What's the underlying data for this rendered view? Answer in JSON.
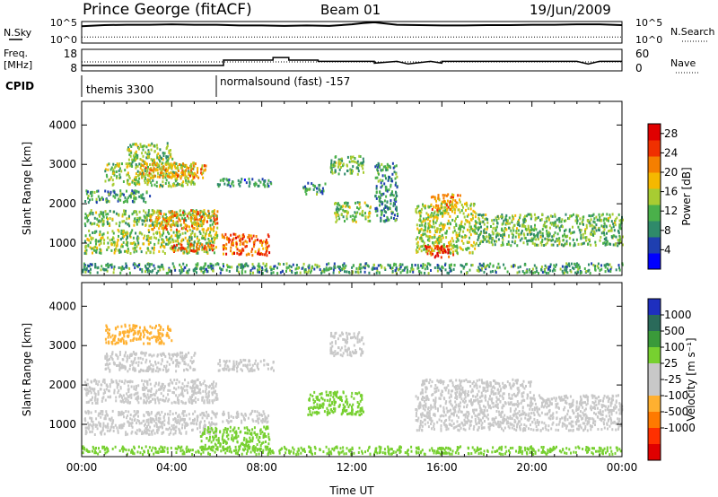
{
  "header": {
    "station": "Prince George (fitACF)",
    "beam": "Beam 01",
    "date": "19/Jun/2009"
  },
  "colors": {
    "power_scale": [
      "#0000ff",
      "#1f3fb0",
      "#2f8a6a",
      "#4ab04a",
      "#a8cc32",
      "#f5b800",
      "#f57f00",
      "#f03000",
      "#e00000"
    ],
    "velocity_scale": [
      "#1e2fbf",
      "#2a6a5a",
      "#3a9a3a",
      "#77d030",
      "#c8c8c8",
      "#c8c8c8",
      "#ffb030",
      "#ff7a00",
      "#ff3000",
      "#e00000"
    ]
  },
  "chart_data": [
    {
      "type": "line",
      "panel": "noise",
      "left_label_top": "N.Sky",
      "right_label": "N.Search",
      "left_ticks": [
        "10^5",
        "10^0"
      ],
      "right_ticks": [
        "10^5",
        "10^0"
      ],
      "series": [
        {
          "name": "N.Sky",
          "x": [
            0,
            1,
            2,
            3,
            4,
            5,
            6,
            7,
            8,
            9,
            10,
            11,
            12,
            12.5,
            13,
            14,
            15,
            16,
            17,
            18,
            19,
            20,
            21,
            22,
            23,
            24
          ],
          "y": [
            4.2,
            4.5,
            4.6,
            4.6,
            4.7,
            4.6,
            4.6,
            4.4,
            4.4,
            4.3,
            4.4,
            4.3,
            4.7,
            5.0,
            5.2,
            4.6,
            4.5,
            4.4,
            4.4,
            4.5,
            4.5,
            4.6,
            4.6,
            4.7,
            4.7,
            4.5
          ]
        },
        {
          "name": "N.Search",
          "x": [
            0,
            4,
            8,
            12,
            16,
            20,
            24
          ],
          "y": [
            1.5,
            1.5,
            1.5,
            1.5,
            1.5,
            1.5,
            1.5
          ]
        }
      ]
    },
    {
      "type": "line",
      "panel": "frequency",
      "left_label_top": "Freq.",
      "left_label_bottom": "[MHz]",
      "right_label": "Nave",
      "left_ticks": [
        "18",
        "8"
      ],
      "right_ticks": [
        "60",
        "0"
      ],
      "series": [
        {
          "name": "Freq.",
          "x": [
            0,
            6.3,
            6.3,
            8.5,
            8.5,
            9.2,
            9.2,
            10.5,
            10.5,
            13,
            13,
            14,
            14.5,
            15.5,
            16,
            16,
            17,
            20,
            22,
            22.5,
            23,
            24
          ],
          "y": [
            10.5,
            10.5,
            13,
            13,
            14.2,
            14.2,
            13,
            13,
            12.4,
            12.4,
            11.6,
            12.4,
            11.2,
            12.4,
            11.6,
            12.4,
            12.4,
            12.4,
            12.4,
            11.2,
            12.4,
            12.4
          ]
        },
        {
          "name": "Nave",
          "x": [
            0,
            24
          ],
          "y": [
            25,
            25
          ]
        }
      ]
    },
    {
      "type": "table",
      "panel": "cpid",
      "label": "CPID",
      "segments": [
        {
          "name": "themis 3300",
          "start": 0,
          "end": 6
        },
        {
          "name": "normalsound (fast) -157",
          "start": 6,
          "end": 24
        }
      ]
    },
    {
      "type": "heatmap",
      "panel": "power",
      "ylabel": "Slant Range [km]",
      "xlim": [
        0,
        24
      ],
      "ylim": [
        180,
        4600
      ],
      "yticks": [
        1000,
        2000,
        3000,
        4000
      ],
      "colorbar": {
        "label": "Power [dB]",
        "ticks": [
          4,
          8,
          12,
          16,
          20,
          24,
          28
        ],
        "range": [
          0,
          30
        ]
      },
      "regions": [
        {
          "t0": 0.1,
          "t1": 6,
          "r0": 700,
          "r1": 1300,
          "v": 14
        },
        {
          "t0": 0.1,
          "t1": 6,
          "r0": 1400,
          "r1": 1800,
          "v": 13
        },
        {
          "t0": 0.1,
          "t1": 3,
          "r0": 2000,
          "r1": 2300,
          "v": 10
        },
        {
          "t0": 1,
          "t1": 5,
          "r0": 2400,
          "r1": 3000,
          "v": 14
        },
        {
          "t0": 2,
          "t1": 4,
          "r0": 3000,
          "r1": 3500,
          "v": 13
        },
        {
          "t0": 2.5,
          "t1": 5.5,
          "r0": 2600,
          "r1": 3000,
          "v": 19
        },
        {
          "t0": 3,
          "t1": 6,
          "r0": 1300,
          "r1": 1800,
          "v": 20
        },
        {
          "t0": 4,
          "t1": 6,
          "r0": 750,
          "r1": 950,
          "v": 24
        },
        {
          "t0": 6.2,
          "t1": 8.3,
          "r0": 650,
          "r1": 1200,
          "v": 23
        },
        {
          "t0": 6,
          "t1": 8.5,
          "r0": 2400,
          "r1": 2600,
          "v": 8
        },
        {
          "t0": 9.8,
          "t1": 10.8,
          "r0": 2200,
          "r1": 2500,
          "v": 9
        },
        {
          "t0": 11,
          "t1": 12.5,
          "r0": 2700,
          "r1": 3200,
          "v": 12
        },
        {
          "t0": 11.2,
          "t1": 12.8,
          "r0": 1500,
          "r1": 2000,
          "v": 14
        },
        {
          "t0": 13,
          "t1": 14,
          "r0": 1500,
          "r1": 3000,
          "v": 9
        },
        {
          "t0": 14.8,
          "t1": 17.5,
          "r0": 700,
          "r1": 2000,
          "v": 15
        },
        {
          "t0": 15.2,
          "t1": 16.5,
          "r0": 600,
          "r1": 900,
          "v": 26
        },
        {
          "t0": 15.5,
          "t1": 16.8,
          "r0": 1800,
          "r1": 2200,
          "v": 20
        },
        {
          "t0": 17.5,
          "t1": 24,
          "r0": 900,
          "r1": 1700,
          "v": 12
        },
        {
          "t0": 0,
          "t1": 24,
          "r0": 200,
          "r1": 450,
          "v": 10
        }
      ]
    },
    {
      "type": "heatmap",
      "panel": "velocity",
      "ylabel": "Slant Range [km]",
      "xlabel": "Time UT",
      "xlim": [
        0,
        24
      ],
      "ylim": [
        180,
        4600
      ],
      "xticks": [
        "00:00",
        "04:00",
        "08:00",
        "12:00",
        "16:00",
        "20:00",
        "00:00"
      ],
      "yticks": [
        1000,
        2000,
        3000,
        4000
      ],
      "colorbar": {
        "label": "Velocity [m s⁻¹]",
        "ticks": [
          "1000",
          "500",
          "100",
          "25",
          "-25",
          "-100",
          "-500",
          "-1000"
        ]
      },
      "regions": [
        {
          "t0": 0.1,
          "t1": 6,
          "r0": 700,
          "r1": 1300,
          "v": 0
        },
        {
          "t0": 0.1,
          "t1": 6,
          "r0": 1500,
          "r1": 2100,
          "v": 0
        },
        {
          "t0": 1,
          "t1": 5,
          "r0": 2300,
          "r1": 2800,
          "v": 0
        },
        {
          "t0": 1,
          "t1": 4,
          "r0": 3000,
          "r1": 3500,
          "v": -200
        },
        {
          "t0": 5.2,
          "t1": 8.3,
          "r0": 300,
          "r1": 900,
          "v": 150
        },
        {
          "t0": 6.2,
          "t1": 8.3,
          "r0": 1000,
          "r1": 1300,
          "v": 0
        },
        {
          "t0": 6,
          "t1": 8.5,
          "r0": 2300,
          "r1": 2600,
          "v": 0
        },
        {
          "t0": 10,
          "t1": 12.5,
          "r0": 1200,
          "r1": 1800,
          "v": 150
        },
        {
          "t0": 11,
          "t1": 12.5,
          "r0": 2700,
          "r1": 3300,
          "v": 0
        },
        {
          "t0": 14.8,
          "t1": 24,
          "r0": 800,
          "r1": 1700,
          "v": 0
        },
        {
          "t0": 15,
          "t1": 20,
          "r0": 1700,
          "r1": 2100,
          "v": 0
        },
        {
          "t0": 0,
          "t1": 24,
          "r0": 200,
          "r1": 400,
          "v": 150
        }
      ]
    }
  ]
}
